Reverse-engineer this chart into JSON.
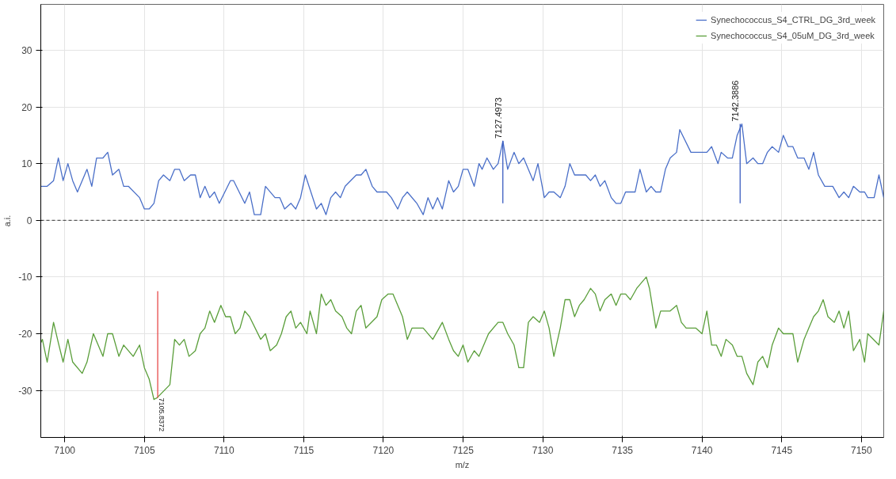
{
  "chart_data": {
    "type": "line",
    "xlabel": "m/z",
    "ylabel": "a.i.",
    "xlim": [
      7098.5,
      7151.4
    ],
    "ylim": [
      -38.3,
      38.1
    ],
    "xticks": [
      7100,
      7105,
      7110,
      7115,
      7120,
      7125,
      7130,
      7135,
      7140,
      7145,
      7150
    ],
    "yticks": [
      -30,
      -20,
      -10,
      0,
      10,
      20,
      30
    ],
    "grid": true,
    "legend": "top right",
    "marker": "none",
    "line_style": "solid",
    "ref_lines": [
      {
        "axis": "y",
        "value": 0,
        "label": null,
        "color": "#333333",
        "line_style": "dashed"
      }
    ],
    "annotations": [
      {
        "text": "7127.4973",
        "x": 7127.4973,
        "y": 14
      },
      {
        "text": "7142.3886",
        "x": 7142.3886,
        "y": 17
      },
      {
        "text": "7105.8372",
        "x": 7105.8372,
        "y": -31.3
      }
    ],
    "series": [
      {
        "name": "Synechococcus_S4_CTRL_DG_3rd_week",
        "color": "#4a6fc8",
        "x": [
          7098.5,
          7098.9,
          7099.3,
          7099.6,
          7099.9,
          7100.2,
          7100.5,
          7100.8,
          7101.4,
          7101.7,
          7102.0,
          7102.4,
          7102.7,
          7103.0,
          7103.4,
          7103.7,
          7104.0,
          7104.7,
          7105.0,
          7105.3,
          7105.6,
          7105.9,
          7106.2,
          7106.6,
          7106.9,
          7107.2,
          7107.5,
          7107.9,
          7108.2,
          7108.5,
          7108.8,
          7109.1,
          7109.4,
          7109.7,
          7110.4,
          7110.6,
          7111.3,
          7111.6,
          7111.9,
          7112.3,
          7112.6,
          7113.2,
          7113.5,
          7113.8,
          7114.2,
          7114.5,
          7114.8,
          7115.1,
          7115.8,
          7116.1,
          7116.4,
          7116.7,
          7117.0,
          7117.3,
          7117.6,
          7118.3,
          7118.6,
          7118.9,
          7119.3,
          7119.6,
          7120.2,
          7120.5,
          7120.9,
          7121.2,
          7121.5,
          7122.1,
          7122.5,
          7122.8,
          7123.1,
          7123.4,
          7123.7,
          7124.1,
          7124.4,
          7124.7,
          7125.0,
          7125.3,
          7125.7,
          7126.0,
          7126.2,
          7126.5,
          7126.9,
          7127.2,
          7127.5,
          7127.8,
          7128.2,
          7128.5,
          7128.8,
          7129.4,
          7129.7,
          7130.1,
          7130.4,
          7130.7,
          7131.1,
          7131.4,
          7131.7,
          7132.0,
          7132.7,
          7133.0,
          7133.3,
          7133.6,
          7133.9,
          7134.3,
          7134.6,
          7134.9,
          7135.2,
          7135.8,
          7136.1,
          7136.5,
          7136.8,
          7137.1,
          7137.4,
          7137.7,
          7138.0,
          7138.4,
          7138.6,
          7139.3,
          7140.3,
          7140.6,
          7141.0,
          7141.2,
          7141.6,
          7141.9,
          7142.2,
          7142.5,
          7142.8,
          7143.2,
          7143.5,
          7143.8,
          7144.1,
          7144.4,
          7144.8,
          7145.1,
          7145.4,
          7145.7,
          7146.0,
          7146.4,
          7146.7,
          7147.0,
          7147.3,
          7147.7,
          7148.2,
          7148.6,
          7148.9,
          7149.2,
          7149.5,
          7149.9,
          7150.2,
          7150.4,
          7150.8,
          7151.1,
          7151.4
        ],
        "values": [
          6,
          6,
          7,
          11,
          7,
          10,
          7,
          5,
          9,
          6,
          11,
          11,
          12,
          8,
          9,
          6,
          6,
          4,
          2,
          2,
          3,
          7,
          8,
          7,
          9,
          9,
          7,
          8,
          8,
          4,
          6,
          4,
          5,
          3,
          7,
          7,
          3,
          5,
          1,
          1,
          6,
          4,
          4,
          2,
          3,
          2,
          4,
          8,
          2,
          3,
          1,
          4,
          5,
          4,
          6,
          8,
          8,
          9,
          6,
          5,
          5,
          4,
          2,
          4,
          5,
          3,
          1,
          4,
          2,
          4,
          2,
          7,
          5,
          6,
          9,
          9,
          6,
          10,
          9,
          11,
          9,
          10,
          14,
          9,
          12,
          10,
          11,
          7,
          10,
          4,
          5,
          5,
          4,
          6,
          10,
          8,
          8,
          7,
          8,
          6,
          7,
          4,
          3,
          3,
          5,
          5,
          9,
          5,
          6,
          5,
          5,
          9,
          11,
          12,
          16,
          12,
          12,
          13,
          10,
          12,
          11,
          11,
          15,
          17,
          10,
          11,
          10,
          10,
          12,
          13,
          12,
          15,
          13,
          13,
          11,
          11,
          9,
          12,
          8,
          6,
          6,
          4,
          5,
          4,
          6,
          5,
          5,
          4,
          4,
          8,
          4
        ]
      },
      {
        "name": "Synechococcus_S4_05uM_DG_3rd_week",
        "color": "#5a9e3a",
        "x": [
          7098.5,
          7098.6,
          7098.9,
          7099.3,
          7099.6,
          7099.9,
          7100.2,
          7100.5,
          7101.1,
          7101.4,
          7101.8,
          7102.4,
          7102.7,
          7103.0,
          7103.4,
          7103.7,
          7104.3,
          7104.7,
          7105.0,
          7105.3,
          7105.6,
          7105.8,
          7106.6,
          7106.9,
          7107.2,
          7107.5,
          7107.8,
          7108.2,
          7108.5,
          7108.8,
          7109.1,
          7109.4,
          7109.8,
          7110.1,
          7110.4,
          7110.7,
          7111.0,
          7111.3,
          7111.6,
          7112.3,
          7112.6,
          7112.9,
          7113.3,
          7113.6,
          7113.9,
          7114.2,
          7114.5,
          7114.8,
          7115.2,
          7115.4,
          7115.8,
          7116.1,
          7116.4,
          7116.7,
          7117.0,
          7117.4,
          7117.7,
          7118.0,
          7118.3,
          7118.6,
          7118.9,
          7119.6,
          7119.9,
          7120.3,
          7120.6,
          7121.2,
          7121.5,
          7121.8,
          7122.5,
          7123.1,
          7123.5,
          7123.7,
          7124.1,
          7124.4,
          7124.7,
          7125.0,
          7125.3,
          7125.7,
          7126.0,
          7126.3,
          7126.6,
          7127.2,
          7127.5,
          7127.8,
          7128.2,
          7128.5,
          7128.8,
          7129.1,
          7129.4,
          7129.8,
          7130.1,
          7130.4,
          7130.7,
          7131.1,
          7131.4,
          7131.7,
          7132.0,
          7132.3,
          7132.6,
          7133.0,
          7133.3,
          7133.6,
          7133.9,
          7134.3,
          7134.6,
          7134.9,
          7135.2,
          7135.5,
          7135.9,
          7136.5,
          7136.7,
          7137.1,
          7137.4,
          7138.0,
          7138.4,
          7138.7,
          7139.0,
          7139.6,
          7140.0,
          7140.3,
          7140.6,
          7140.9,
          7141.2,
          7141.5,
          7141.9,
          7142.2,
          7142.5,
          7142.8,
          7143.2,
          7143.5,
          7143.8,
          7144.1,
          7144.4,
          7144.8,
          7145.1,
          7145.7,
          7146.0,
          7146.4,
          7146.7,
          7147.0,
          7147.3,
          7147.6,
          7147.9,
          7148.3,
          7148.6,
          7148.9,
          7149.2,
          7149.5,
          7149.9,
          7150.2,
          7150.4,
          7151.1,
          7151.4
        ],
        "values": [
          -21.6,
          -21,
          -25,
          -18,
          -21.6,
          -25,
          -21,
          -25,
          -27,
          -25,
          -20,
          -24,
          -20,
          -20,
          -24,
          -22,
          -24,
          -22,
          -26,
          -28,
          -31.6,
          -31.3,
          -29,
          -21,
          -22,
          -21,
          -24,
          -23,
          -20,
          -19,
          -16,
          -18,
          -15,
          -17,
          -17,
          -20,
          -19,
          -16,
          -17,
          -21,
          -20,
          -23,
          -22,
          -20,
          -17,
          -16,
          -19,
          -18,
          -20,
          -16,
          -20,
          -13,
          -15,
          -14,
          -16,
          -17,
          -19,
          -20,
          -16,
          -15,
          -19,
          -17,
          -14,
          -13,
          -13,
          -17,
          -21,
          -19,
          -19,
          -21,
          -19,
          -18,
          -21,
          -23,
          -24,
          -22,
          -25,
          -23,
          -24,
          -22,
          -20,
          -18,
          -18,
          -20,
          -22,
          -26,
          -26,
          -18,
          -17,
          -18,
          -16,
          -19,
          -24,
          -19,
          -14,
          -14,
          -17,
          -15,
          -14,
          -12,
          -13,
          -16,
          -14,
          -13,
          -15,
          -13,
          -13,
          -14,
          -12,
          -10,
          -12,
          -19,
          -16,
          -16,
          -15,
          -18,
          -19,
          -19,
          -20,
          -16,
          -22,
          -22,
          -24,
          -21,
          -22,
          -24,
          -24,
          -27,
          -29,
          -25,
          -24,
          -26,
          -22,
          -19,
          -20,
          -20,
          -25,
          -21,
          -19,
          -17,
          -16,
          -14,
          -17,
          -18,
          -16,
          -19,
          -16,
          -23,
          -21,
          -25,
          -20,
          -22,
          -16
        ]
      },
      {
        "color": "#3a5cc0",
        "x": [
          7127.4973,
          7127.4973
        ],
        "values": [
          3,
          14
        ]
      },
      {
        "color": "#3a5cc0",
        "x": [
          7142.3886,
          7142.3886
        ],
        "values": [
          3,
          17
        ]
      },
      {
        "color": "#e84a4a",
        "x": [
          7105.8372,
          7105.8372
        ],
        "values": [
          -31.3,
          -12.5
        ]
      }
    ]
  }
}
